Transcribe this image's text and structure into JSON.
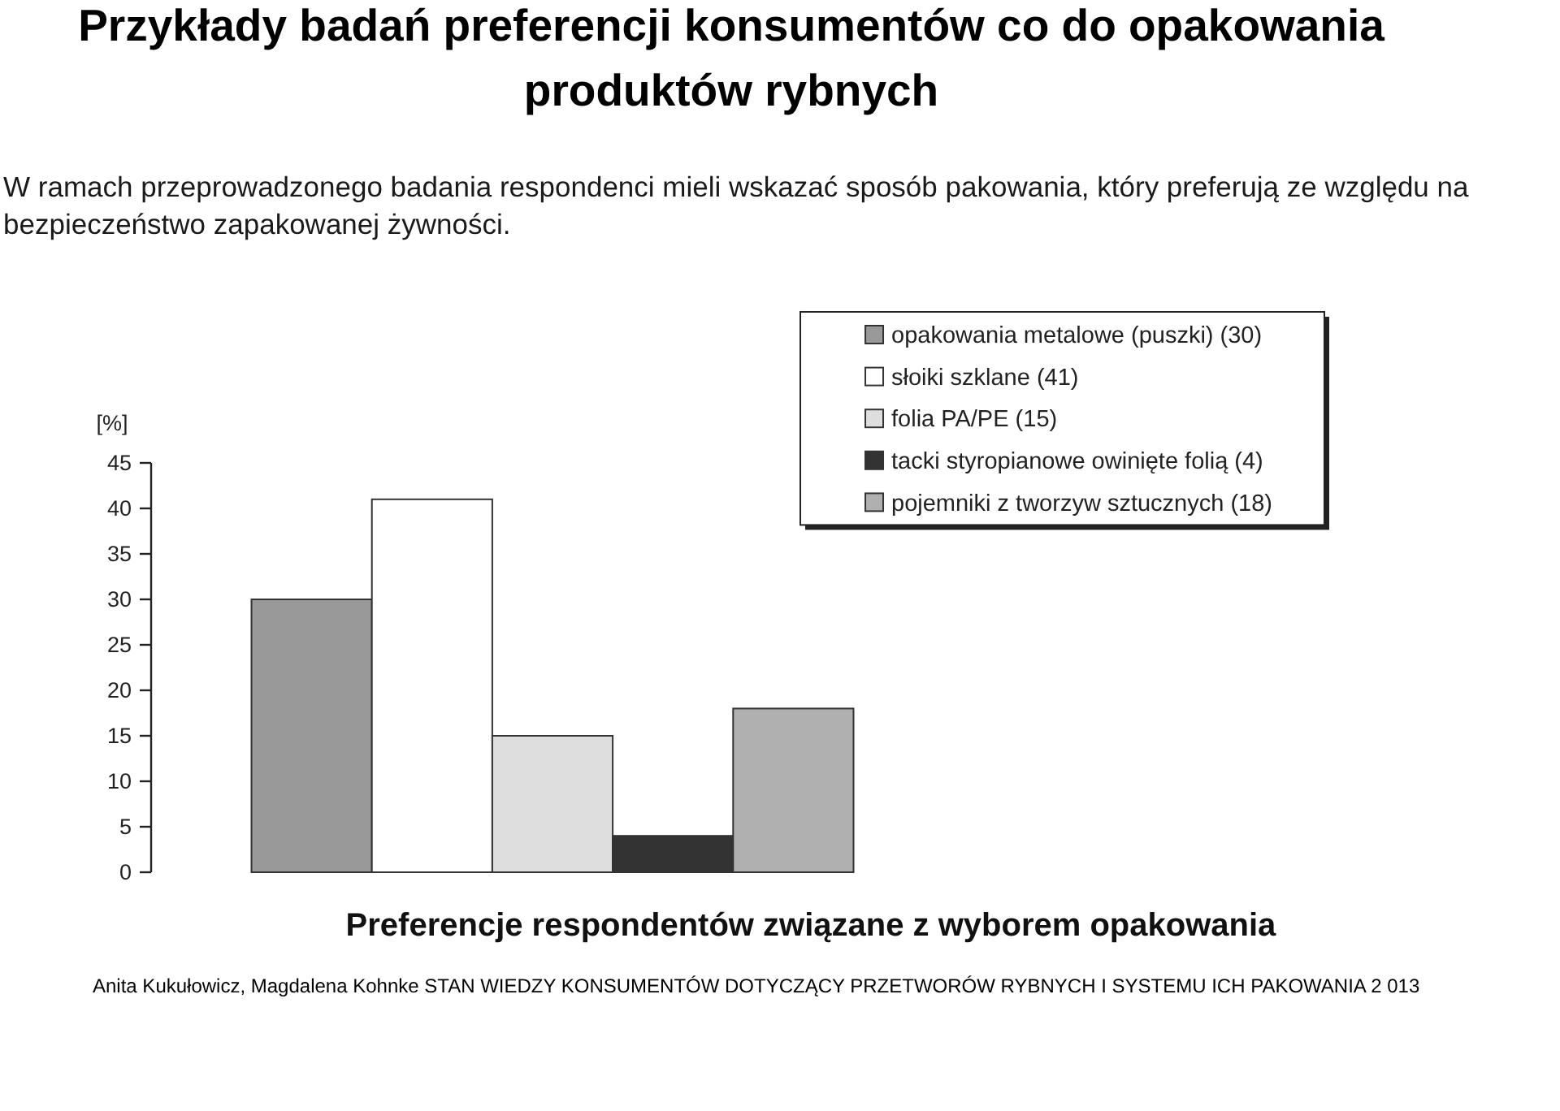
{
  "chart_data": {
    "type": "bar",
    "title": "Przykłady badań preferencji konsumentów co do opakowania produktów rybnych",
    "subtitle": "W ramach przeprowadzonego badania respondenci mieli wskazać sposób pakowania, który preferują ze względu na bezpieczeństwo zapakowanej żywności.",
    "xlabel": "Preferencje respondentów związane z wyborem opakowania",
    "ylabel": "[%]",
    "categories": [
      null
    ],
    "series": [
      {
        "name": "opakowania metalowe (puszki) (30)",
        "color": "#999999",
        "values": [
          30
        ]
      },
      {
        "name": "słoiki szklane (41)",
        "color": "#ffffff",
        "values": [
          41
        ]
      },
      {
        "name": "folia PA/PE (15)",
        "color": "#dedede",
        "values": [
          15
        ]
      },
      {
        "name": "tacki styropianowe owinięte folią (4)",
        "color": "#333333",
        "values": [
          4
        ]
      },
      {
        "name": "pojemniki z tworzyw sztucznych (18)",
        "color": "#b0b0b0",
        "values": [
          18
        ]
      }
    ],
    "ylim": [
      0,
      45
    ],
    "yticks": [
      0,
      5,
      10,
      15,
      20,
      25,
      30,
      35,
      40,
      45
    ],
    "legend": "top right",
    "annotations": [
      "Anita Kukułowicz, Magdalena Kohnke STAN WIEDZY KONSUMENTÓW DOTYCZĄCY PRZETWORÓW RYBNYCH I SYSTEMU ICH PAKOWANIA 2 013"
    ]
  }
}
